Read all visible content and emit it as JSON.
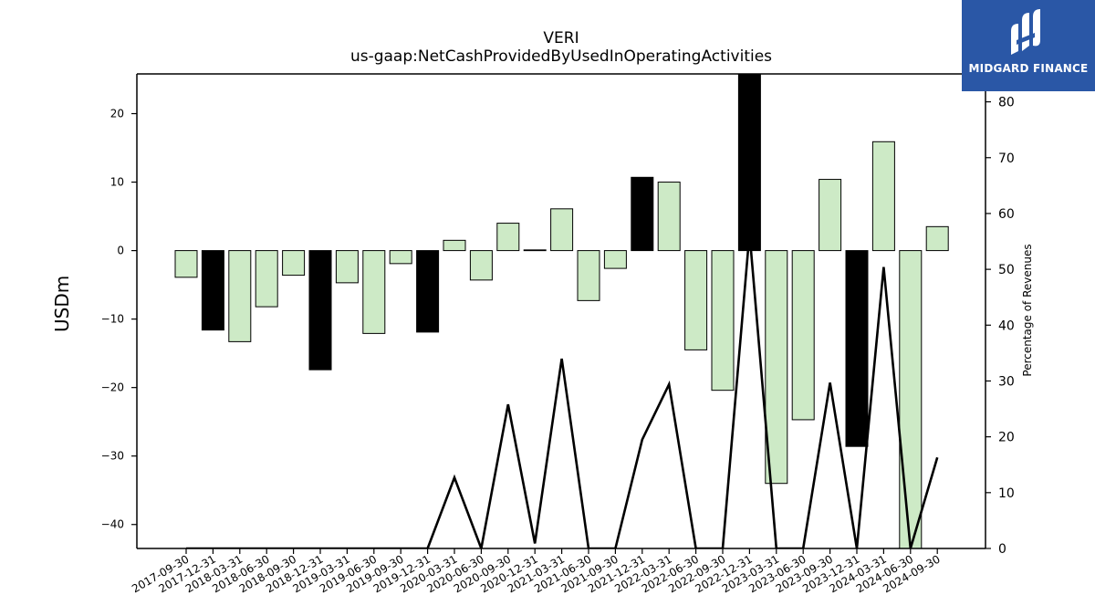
{
  "title": "VERI",
  "subtitle": "us-gaap:NetCashProvidedByUsedInOperatingActivities",
  "logo": {
    "text": "MIDGARD FINANCE",
    "icon": "midgard-logo-icon",
    "background": "#2a57a6"
  },
  "colors": {
    "bar_positive_year": "#cdeac6",
    "bar_highlight": "#000000",
    "line": "#000000"
  },
  "chart_data": {
    "type": "bar",
    "ylabel": "USDm",
    "y2label": "Percentage of Revenues",
    "ylim": [
      -43.5,
      25.8
    ],
    "y2lim": [
      0,
      85
    ],
    "yticks": [
      -40,
      -30,
      -20,
      -10,
      0,
      10,
      20
    ],
    "y2ticks": [
      0,
      10,
      20,
      30,
      40,
      50,
      60,
      70,
      80
    ],
    "categories": [
      "2017-09-30",
      "2017-12-31",
      "2018-03-31",
      "2018-06-30",
      "2018-09-30",
      "2018-12-31",
      "2019-03-31",
      "2019-06-30",
      "2019-09-30",
      "2019-12-31",
      "2020-03-31",
      "2020-06-30",
      "2020-09-30",
      "2020-12-31",
      "2021-03-31",
      "2021-06-30",
      "2021-09-30",
      "2021-12-31",
      "2022-03-31",
      "2022-06-30",
      "2022-09-30",
      "2022-12-31",
      "2023-03-31",
      "2023-06-30",
      "2023-09-30",
      "2023-12-31",
      "2024-03-31",
      "2024-06-30",
      "2024-09-30"
    ],
    "series": [
      {
        "values": [
          -3.9,
          -11.6,
          -13.3,
          -8.2,
          -3.6,
          -17.4,
          -4.7,
          -12.1,
          -1.9,
          -11.9,
          1.5,
          -4.3,
          4.0,
          0.1,
          6.1,
          -7.3,
          -2.6,
          10.7,
          10.0,
          -14.5,
          -20.4,
          26.0,
          -34.0,
          -24.7,
          10.4,
          -28.6,
          15.9,
          -44.0,
          3.5
        ],
        "highlight": [
          false,
          true,
          false,
          false,
          false,
          true,
          false,
          false,
          false,
          true,
          false,
          false,
          false,
          true,
          false,
          false,
          false,
          true,
          false,
          false,
          false,
          true,
          false,
          false,
          false,
          true,
          false,
          false,
          false
        ]
      },
      {
        "axis": "right",
        "type": "line",
        "values": [
          null,
          null,
          null,
          null,
          null,
          null,
          null,
          null,
          null,
          null,
          12.7,
          null,
          25.8,
          0.9,
          34.0,
          null,
          null,
          19.5,
          29.4,
          null,
          null,
          56.5,
          null,
          null,
          29.7,
          null,
          50.4,
          null,
          16.3
        ]
      }
    ]
  }
}
